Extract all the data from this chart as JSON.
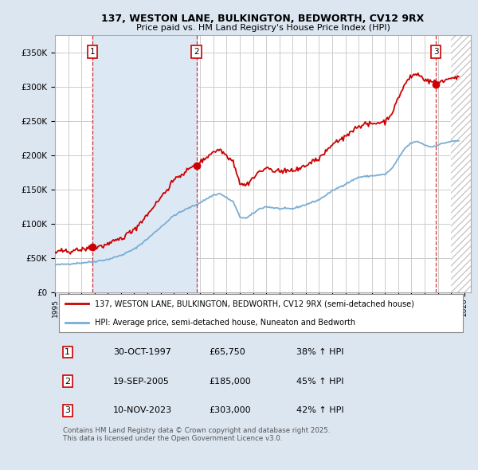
{
  "title1": "137, WESTON LANE, BULKINGTON, BEDWORTH, CV12 9RX",
  "title2": "Price paid vs. HM Land Registry's House Price Index (HPI)",
  "ylim": [
    0,
    375000
  ],
  "xlim_start": 1995.0,
  "xlim_end": 2026.5,
  "yticks": [
    0,
    50000,
    100000,
    150000,
    200000,
    250000,
    300000,
    350000
  ],
  "ytick_labels": [
    "£0",
    "£50K",
    "£100K",
    "£150K",
    "£200K",
    "£250K",
    "£300K",
    "£350K"
  ],
  "xticks": [
    1995,
    1996,
    1997,
    1998,
    1999,
    2000,
    2001,
    2002,
    2003,
    2004,
    2005,
    2006,
    2007,
    2008,
    2009,
    2010,
    2011,
    2012,
    2013,
    2014,
    2015,
    2016,
    2017,
    2018,
    2019,
    2020,
    2021,
    2022,
    2023,
    2024,
    2025,
    2026
  ],
  "sale_dates": [
    1997.83,
    2005.72,
    2023.86
  ],
  "sale_prices": [
    65750,
    185000,
    303000
  ],
  "sale_labels": [
    "1",
    "2",
    "3"
  ],
  "vline_color": "#cc0000",
  "sale_color": "#cc0000",
  "hpi_color": "#7aadd4",
  "shade_color": "#dce9f5",
  "legend_sale": "137, WESTON LANE, BULKINGTON, BEDWORTH, CV12 9RX (semi-detached house)",
  "legend_hpi": "HPI: Average price, semi-detached house, Nuneaton and Bedworth",
  "table_data": [
    [
      "1",
      "30-OCT-1997",
      "£65,750",
      "38% ↑ HPI"
    ],
    [
      "2",
      "19-SEP-2005",
      "£185,000",
      "45% ↑ HPI"
    ],
    [
      "3",
      "10-NOV-2023",
      "£303,000",
      "42% ↑ HPI"
    ]
  ],
  "footnote": "Contains HM Land Registry data © Crown copyright and database right 2025.\nThis data is licensed under the Open Government Licence v3.0.",
  "bg_color": "#dce6f1",
  "plot_bg": "#ffffff",
  "hatch_color": "#c8c8c8"
}
